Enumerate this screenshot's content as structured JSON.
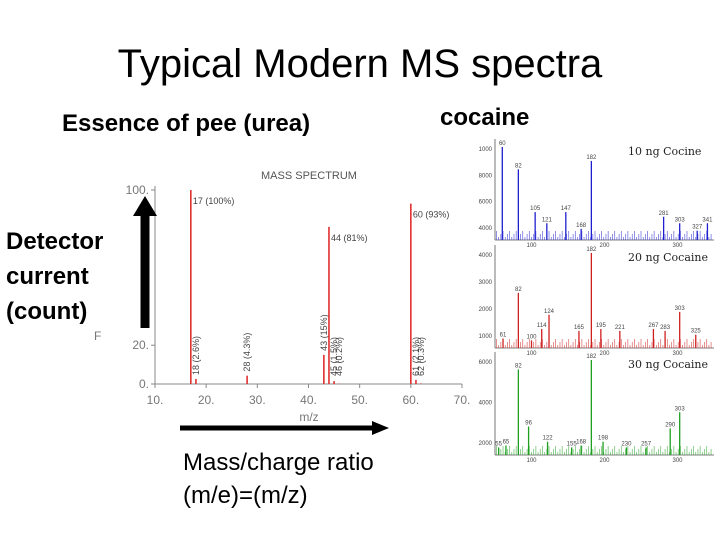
{
  "slide": {
    "title": "Typical Modern MS spectra",
    "left_caption": "Essence of pee (urea)",
    "right_caption": "cocaine",
    "y_arrow_label": [
      "Detector",
      "current",
      "(count)"
    ],
    "x_arrow_label": [
      "Mass/charge ratio",
      "(m/e)=(m/z)"
    ]
  },
  "colors": {
    "urea_peaks": "#e03030",
    "panel1": "#1f1fd0",
    "panel2": "#d01f1f",
    "panel3": "#1f9f1f"
  },
  "chart_data": [
    {
      "type": "bar",
      "title": "MASS SPECTRUM",
      "xlabel": "m/z",
      "ylabel": "",
      "xlim": [
        10,
        70
      ],
      "ylim": [
        0,
        100
      ],
      "x_ticks": [
        "10.",
        "20.",
        "30.",
        "40.",
        "50.",
        "60.",
        "70."
      ],
      "y_ticks": [
        "0.",
        "20.",
        "100."
      ],
      "y_stub": "F",
      "peaks": [
        {
          "mz": 17,
          "value": 100,
          "label": "17 (100%)"
        },
        {
          "mz": 18,
          "value": 2.6,
          "label": "18 (2.6%)"
        },
        {
          "mz": 28,
          "value": 4.3,
          "label": "28 (4.3%)"
        },
        {
          "mz": 43,
          "value": 15,
          "label": "43 (15%)"
        },
        {
          "mz": 44,
          "value": 81,
          "label": "44 (81%)"
        },
        {
          "mz": 45,
          "value": 1.5,
          "label": "45 (1.5%)"
        },
        {
          "mz": 46,
          "value": 0.2,
          "label": "46 (0.2%)"
        },
        {
          "mz": 60,
          "value": 93,
          "label": "60 (93%)"
        },
        {
          "mz": 61,
          "value": 2.1,
          "label": "61 (2.1%)"
        },
        {
          "mz": 62,
          "value": 0.3,
          "label": "62 (0.3%)"
        }
      ]
    },
    {
      "type": "bar",
      "title": "10 ng Cocine",
      "xlim": [
        50,
        350
      ],
      "x_ticks": [
        "100",
        "200",
        "300"
      ],
      "y_ticks": [
        "1000",
        "8000",
        "6000",
        "4000"
      ],
      "peaks": [
        {
          "mz": 60,
          "value": 100,
          "label": "60"
        },
        {
          "mz": 82,
          "value": 76,
          "label": "82"
        },
        {
          "mz": 105,
          "value": 30,
          "label": "105"
        },
        {
          "mz": 121,
          "value": 18,
          "label": "121"
        },
        {
          "mz": 147,
          "value": 30,
          "label": "147"
        },
        {
          "mz": 168,
          "value": 12,
          "label": "168"
        },
        {
          "mz": 182,
          "value": 85,
          "label": "182"
        },
        {
          "mz": 281,
          "value": 25,
          "label": "281"
        },
        {
          "mz": 303,
          "value": 18,
          "label": "303"
        },
        {
          "mz": 327,
          "value": 10,
          "label": "327"
        },
        {
          "mz": 341,
          "value": 18,
          "label": "341"
        }
      ]
    },
    {
      "type": "bar",
      "title": "20 ng Cocaine",
      "xlim": [
        50,
        350
      ],
      "x_ticks": [
        "100",
        "200",
        "300"
      ],
      "y_ticks": [
        "4000",
        "3000",
        "2000",
        "1000"
      ],
      "peaks": [
        {
          "mz": 61,
          "value": 10,
          "label": "61"
        },
        {
          "mz": 82,
          "value": 58,
          "label": "82"
        },
        {
          "mz": 100,
          "value": 8,
          "label": "100"
        },
        {
          "mz": 114,
          "value": 20,
          "label": "114"
        },
        {
          "mz": 124,
          "value": 35,
          "label": "124"
        },
        {
          "mz": 165,
          "value": 18,
          "label": "165"
        },
        {
          "mz": 182,
          "value": 100,
          "label": "182"
        },
        {
          "mz": 195,
          "value": 20,
          "label": "195"
        },
        {
          "mz": 221,
          "value": 18,
          "label": "221"
        },
        {
          "mz": 267,
          "value": 20,
          "label": "267"
        },
        {
          "mz": 283,
          "value": 18,
          "label": "283"
        },
        {
          "mz": 303,
          "value": 38,
          "label": "303"
        },
        {
          "mz": 325,
          "value": 14,
          "label": "325"
        }
      ]
    },
    {
      "type": "bar",
      "title": "30 ng Cocaine",
      "xlim": [
        50,
        350
      ],
      "x_ticks": [
        "100",
        "200",
        "300"
      ],
      "y_ticks": [
        "6000",
        "4000",
        "2000"
      ],
      "peaks": [
        {
          "mz": 55,
          "value": 8,
          "label": "55"
        },
        {
          "mz": 65,
          "value": 10,
          "label": "65"
        },
        {
          "mz": 82,
          "value": 90,
          "label": "82"
        },
        {
          "mz": 96,
          "value": 30,
          "label": "96"
        },
        {
          "mz": 122,
          "value": 14,
          "label": "122"
        },
        {
          "mz": 155,
          "value": 8,
          "label": "155"
        },
        {
          "mz": 168,
          "value": 10,
          "label": "168"
        },
        {
          "mz": 182,
          "value": 100,
          "label": "182"
        },
        {
          "mz": 198,
          "value": 14,
          "label": "198"
        },
        {
          "mz": 230,
          "value": 8,
          "label": "230"
        },
        {
          "mz": 257,
          "value": 8,
          "label": "257"
        },
        {
          "mz": 290,
          "value": 28,
          "label": "290"
        },
        {
          "mz": 303,
          "value": 45,
          "label": "303"
        }
      ]
    }
  ]
}
